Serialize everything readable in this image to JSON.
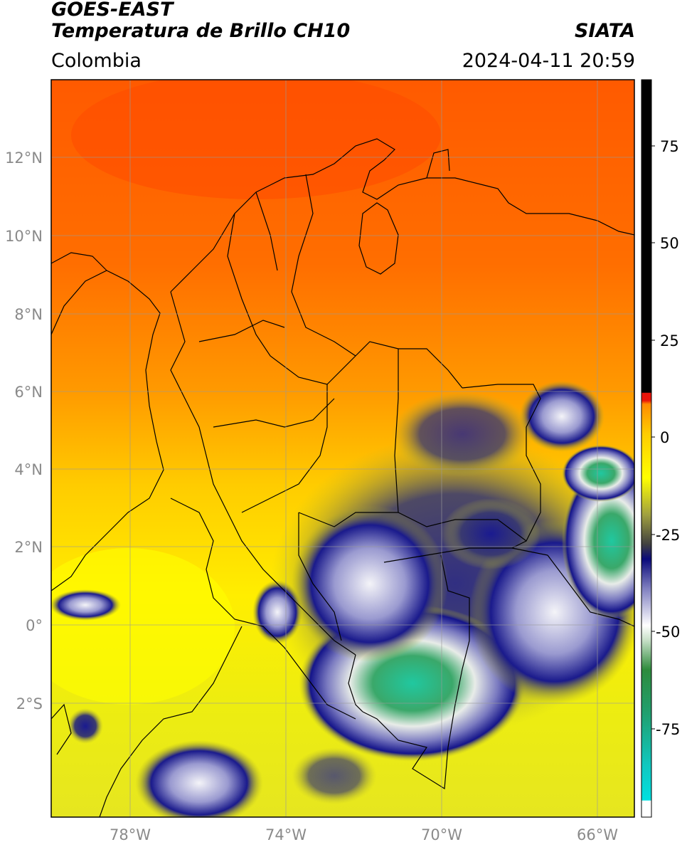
{
  "header": {
    "satellite": "GOES-EAST",
    "product": "Temperatura de Brillo CH10",
    "region": "Colombia",
    "agency": "SIATA",
    "timestamp": "2024-04-11 20:59"
  },
  "map": {
    "lat_ticks": [
      "12°N",
      "10°N",
      "8°N",
      "6°N",
      "4°N",
      "2°N",
      "0°",
      "2°S"
    ],
    "lon_ticks": [
      "78°W",
      "74°W",
      "70°W",
      "66°W"
    ],
    "lat_range": [
      -4.8,
      14.0
    ],
    "lon_range": [
      -80.0,
      -65.0
    ]
  },
  "colorbar": {
    "ticks": [
      "75",
      "50",
      "25",
      "0",
      "-25",
      "-50",
      "-75"
    ],
    "colors": {
      "black": "#000000",
      "red": "#e8140a",
      "orange": "#ff8c00",
      "yellow": "#ffff00",
      "olive": "#5a5a28",
      "navy": "#0a0a7a",
      "white": "#ffffff",
      "green": "#2e8b3c",
      "cyan": "#00e5e5"
    }
  }
}
